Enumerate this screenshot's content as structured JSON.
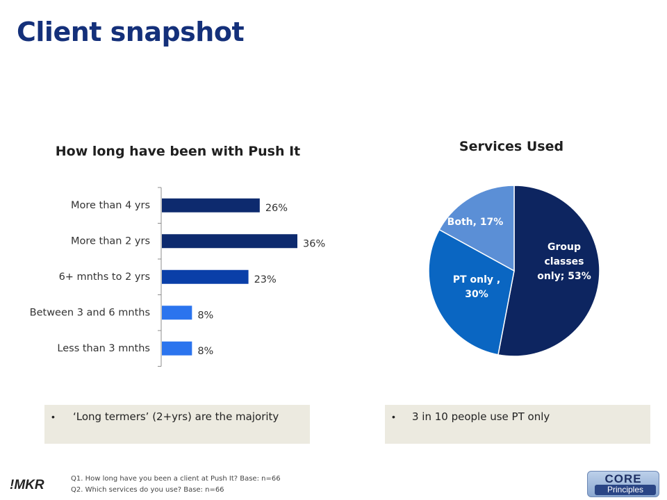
{
  "page": {
    "title": "Client snapshot",
    "brand_left": "!MKR",
    "brand_right_core": "CORE",
    "brand_right_sub": "Principles",
    "footnotes": [
      "Q1. How long have you been a client at Push It? Base: n=66",
      "Q2. Which services do you use? Base: n=66"
    ]
  },
  "notes": [
    {
      "bullet": "•",
      "text": "‘Long termers’ (2+yrs) are the majority"
    },
    {
      "bullet": "•",
      "text": "3 in 10 people use PT only"
    }
  ],
  "chart_data": [
    {
      "type": "bar",
      "orientation": "horizontal",
      "title": "How long have been with Push It",
      "categories": [
        "More than 4 yrs",
        "More than 2 yrs",
        "6+ mnths to 2 yrs",
        "Between 3 and 6 mnths",
        "Less than 3 mnths"
      ],
      "values": [
        26,
        36,
        23,
        8,
        8
      ],
      "value_labels": [
        "26%",
        "36%",
        "23%",
        "8%",
        "8%"
      ],
      "colors": [
        "#0d2a6e",
        "#0d2a6e",
        "#0a3fa8",
        "#2b74ee",
        "#2b74ee"
      ],
      "xlim": [
        0,
        36
      ],
      "legend": "none"
    },
    {
      "type": "pie",
      "title": "Services Used",
      "slices": [
        {
          "label": "Group classes only; 53%",
          "value": 53,
          "color": "#0d2560"
        },
        {
          "label": "PT only , 30%",
          "value": 30,
          "color": "#0a66c2"
        },
        {
          "label": "Both, 17%",
          "value": 17,
          "color": "#5b8fd6"
        }
      ],
      "legend": "none"
    }
  ]
}
